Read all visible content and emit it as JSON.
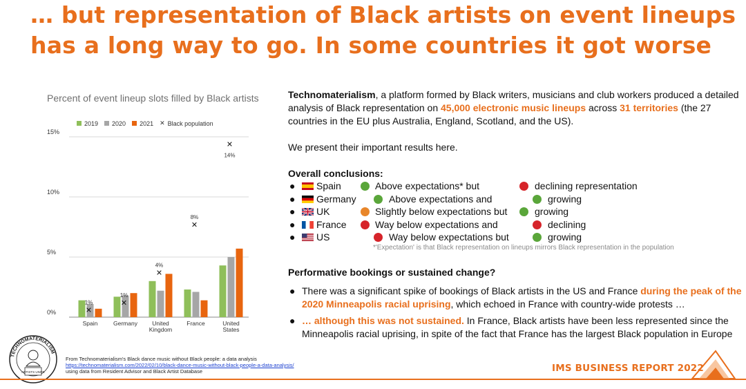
{
  "slide": {
    "title_line1": "… but representation of Black artists on event lineups",
    "title_line2": "has a long way to go. In some countries it got worse"
  },
  "colors": {
    "accent": "#e86f1d",
    "bar_2019": "#8fbf5a",
    "bar_2020": "#a6a6a6",
    "bar_2021": "#e8650f",
    "grid": "#d9d9d9"
  },
  "chart_data": {
    "type": "bar",
    "title": "Percent of event lineup slots filled by Black artists",
    "categories": [
      "Spain",
      "Germany",
      "United Kingdom",
      "France",
      "United States"
    ],
    "category_lines": [
      [
        "Spain"
      ],
      [
        "Germany"
      ],
      [
        "United",
        "Kingdom"
      ],
      [
        "France"
      ],
      [
        "United",
        "States"
      ]
    ],
    "series": [
      {
        "name": "2019",
        "values": [
          1.4,
          1.7,
          3.0,
          2.3,
          4.3
        ]
      },
      {
        "name": "2020",
        "values": [
          1.1,
          1.8,
          2.2,
          2.1,
          5.0
        ]
      },
      {
        "name": "2021",
        "values": [
          0.7,
          2.0,
          3.6,
          1.4,
          5.7
        ]
      }
    ],
    "markers": {
      "name": "Black population",
      "values": [
        0.6,
        1.2,
        3.7,
        7.7,
        14.4
      ],
      "labels": [
        "1%",
        "1%",
        "4%",
        "8%",
        "14%"
      ]
    },
    "ylim": [
      0,
      15
    ],
    "yticks": [
      0,
      5,
      10,
      15
    ],
    "ytick_labels": [
      "0%",
      "5%",
      "10%",
      "15%"
    ],
    "legend_position": "top",
    "grid": true,
    "xlabel": "",
    "ylabel": ""
  },
  "intro": {
    "org": "Technomaterialism",
    "text1": ", a platform formed by Black writers, musicians and club workers produced a detailed analysis of Black representation on ",
    "highlight1": "45,000 electronic music lineups",
    "text2": " across ",
    "highlight2": "31 territories",
    "text3": " (the 27 countries in the EU plus Australia, England, Scotland, and the US).",
    "present": "We present their important results here."
  },
  "conclusions": {
    "heading": "Overall conclusions:",
    "rows": [
      {
        "country": "Spain",
        "col2": "Above expectations* but",
        "col3": "declining representation",
        "dot2": "green",
        "dot3": "red"
      },
      {
        "country": "Germany",
        "col2": "Above expectations and",
        "col3": "growing",
        "dot2": "green",
        "dot3": "green"
      },
      {
        "country": "UK",
        "col2": "Slightly below expectations but",
        "col3": "growing",
        "dot2": "orange",
        "dot3": "green"
      },
      {
        "country": "France",
        "col2": "Way below expectations and",
        "col3": "declining",
        "dot2": "red",
        "dot3": "red"
      },
      {
        "country": "US",
        "col2": "Way below expectations but",
        "col3": "growing",
        "dot2": "red",
        "dot3": "green"
      }
    ],
    "footnote": "*'Expectation' is that Black representation on lineups mirrors Black representation in the population"
  },
  "performative": {
    "heading": "Performative bookings or sustained change?",
    "b1_text1": "There was a significant spike of bookings of Black artists in the US and France ",
    "b1_highlight": "during the peak of the 2020 Minneapolis racial uprising",
    "b1_text2": ", which echoed in France with country-wide protests …",
    "b2_highlight": "… although this was not sustained.",
    "b2_text": " In France, Black artists have been less represented since the Minneapolis racial uprising, in spite of the fact that France has the largest Black population in Europe"
  },
  "source": {
    "line1": "From Technomaterialism's Black dance music without Black people: a data analysis",
    "link": "https://technomaterialism.com/2022/02/10/black-dance-music-without-black-people-a-data-analysis/",
    "line3": "using data from Resident Advisor and Black Artist Database"
  },
  "brand": "IMS BUSINESS REPORT 2022",
  "logo_text": {
    "ring": "TECHNOMATERIALISM",
    "badge": "ARTISTS UNITE"
  }
}
